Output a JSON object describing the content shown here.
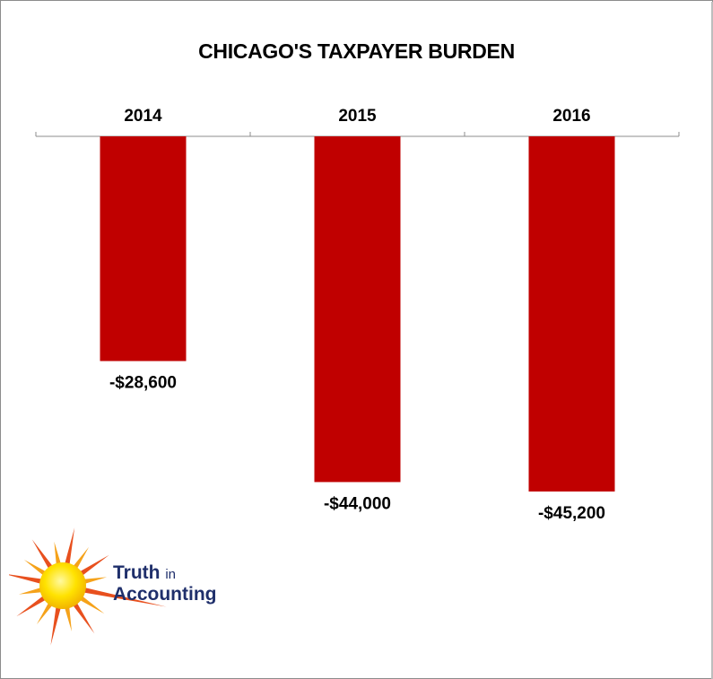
{
  "chart_data": {
    "type": "bar",
    "title": "CHICAGO'S TAXPAYER BURDEN",
    "categories": [
      "2014",
      "2015",
      "2016"
    ],
    "values": [
      -28600,
      -44000,
      -45200
    ],
    "value_labels": [
      "-$28,600",
      "-$44,000",
      "-$45,200"
    ],
    "ylim": [
      -50000,
      0
    ],
    "xlabel": "",
    "ylabel": "",
    "grid": false,
    "category_axis_position": "top",
    "bar_color": "#c00000"
  },
  "logo": {
    "word1": "Truth",
    "word2": "in",
    "word3": "Accounting"
  }
}
